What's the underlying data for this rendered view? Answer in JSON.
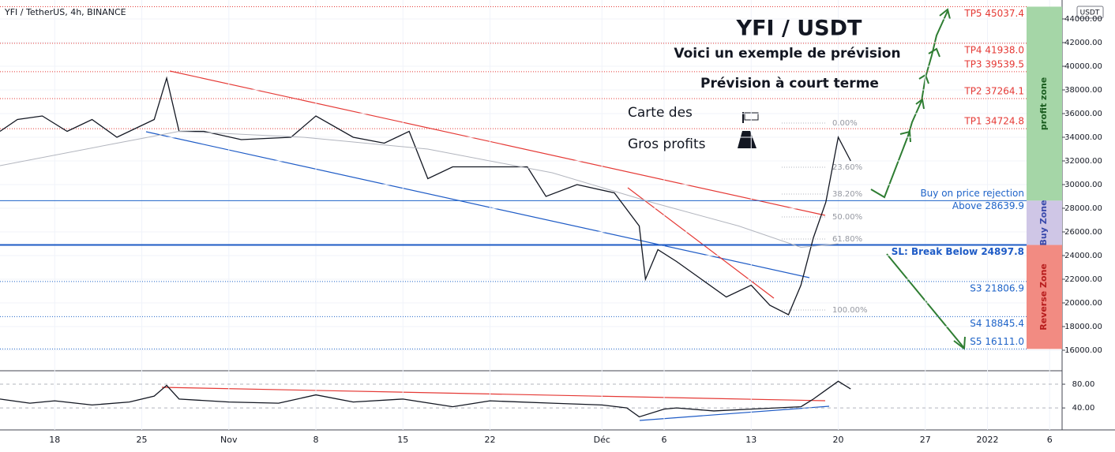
{
  "chart_data": [
    {
      "type": "line",
      "title": "YFI / TetherUS, 4h, BINANCE",
      "heading": "YFI / USDT",
      "annotations": [
        "Voici un exemple de prévision",
        "Prévision à court terme",
        "Carte des",
        "Gros profits"
      ],
      "unit": "USDT",
      "x": [
        -4.4,
        -3,
        -1,
        1,
        3,
        5,
        8,
        9,
        10,
        12,
        15,
        19,
        21,
        24,
        26.5,
        28.5,
        30,
        32,
        35,
        38,
        39.5,
        42,
        45,
        47,
        47.5,
        48.5,
        50,
        52,
        54,
        56,
        57.5,
        59,
        60,
        61,
        62,
        63,
        64
      ],
      "series": [
        {
          "color": "#131722",
          "values": [
            34500,
            35500,
            35800,
            34500,
            35500,
            34000,
            35500,
            39000,
            34500,
            34500,
            33800,
            34000,
            35800,
            34000,
            33500,
            34500,
            30500,
            31500,
            31500,
            31500,
            29000,
            30000,
            29300,
            26500,
            22000,
            24500,
            23500,
            22000,
            20500,
            21500,
            19800,
            19000,
            21500,
            25500,
            28500,
            34000,
            32000
          ]
        },
        {
          "color": "#b2b5be",
          "x": [
            -4.4,
            5,
            10,
            20,
            30,
            40,
            48,
            55,
            60,
            63
          ],
          "values": [
            31600,
            33500,
            34500,
            34000,
            33000,
            31000,
            28500,
            26500,
            24700,
            25000
          ]
        }
      ],
      "xlim": [
        -4.4,
        81
      ],
      "ylim": [
        14400,
        45600
      ],
      "yticks": [
        {
          "value": 16000,
          "label": "16000.00"
        },
        {
          "value": 18000,
          "label": "18000.00"
        },
        {
          "value": 20000,
          "label": "20000.00"
        },
        {
          "value": 22000,
          "label": "22000.00"
        },
        {
          "value": 24000,
          "label": "24000.00"
        },
        {
          "value": 26000,
          "label": "26000.00"
        },
        {
          "value": 28000,
          "label": "28000.00"
        },
        {
          "value": 30000,
          "label": "30000.00"
        },
        {
          "value": 32000,
          "label": "32000.00"
        },
        {
          "value": 34000,
          "label": "34000.00"
        },
        {
          "value": 36000,
          "label": "36000.00"
        },
        {
          "value": 38000,
          "label": "38000.00"
        },
        {
          "value": 40000,
          "label": "40000.00"
        },
        {
          "value": 42000,
          "label": "42000.00"
        },
        {
          "value": 44000,
          "label": "44000.00"
        }
      ],
      "levels": [
        {
          "label": "TP5 45037.4",
          "value": 45037.4,
          "color": "#e53935",
          "style": "dotted",
          "position": "below"
        },
        {
          "label": "TP4 41938.0",
          "value": 41938.0,
          "color": "#e53935",
          "style": "dotted",
          "position": "below"
        },
        {
          "label": "TP3 39539.5",
          "value": 39539.5,
          "color": "#e53935",
          "style": "dotted",
          "position": "above"
        },
        {
          "label": "TP2 37264.1",
          "value": 37264.1,
          "color": "#e53935",
          "style": "dotted",
          "position": "above"
        },
        {
          "label": "TP1 34724.8",
          "value": 34724.8,
          "color": "#e53935",
          "style": "dotted",
          "position": "above"
        },
        {
          "label": "Buy on price rejection",
          "sublabel": "Above 28639.9",
          "value": 28639.9,
          "color": "#1e63c8",
          "style": "solid",
          "position": "above"
        },
        {
          "label": "SL: Break Below 24897.8",
          "value": 24897.8,
          "color": "#1e5bc6",
          "style": "thick",
          "position": "below"
        },
        {
          "label": "S3 21806.9",
          "value": 21806.9,
          "color": "#1e63c8",
          "style": "dotted",
          "position": "below"
        },
        {
          "label": "S4 18845.4",
          "value": 18845.4,
          "color": "#1e63c8",
          "style": "dotted",
          "position": "below"
        },
        {
          "label": "S5 16111.0",
          "value": 16111.0,
          "color": "#1e63c8",
          "style": "dotted",
          "position": "above"
        }
      ],
      "fib": [
        {
          "value": 0,
          "label": "0.00%",
          "price": 35200
        },
        {
          "value": 23.6,
          "label": "23.60%",
          "price": 31470
        },
        {
          "value": 38.2,
          "label": "38.20%",
          "price": 29200
        },
        {
          "value": 50,
          "label": "50.00%",
          "price": 27270
        },
        {
          "value": 61.8,
          "label": "61.80%",
          "price": 25400
        },
        {
          "value": 100,
          "label": "100.00%",
          "price": 19400
        }
      ],
      "zones": [
        {
          "label": "profit zone",
          "top": 45037.4,
          "bottom": 28639.9,
          "color": "#a5d6a7",
          "text_color": "#1b5e20"
        },
        {
          "label": "Buy Zone",
          "top": 28639.9,
          "bottom": 24897.8,
          "color": "#cfc6e6",
          "text_color": "#3949ab"
        },
        {
          "label": "Reverse Zone",
          "top": 24897.8,
          "bottom": 16111.0,
          "color": "#f28b82",
          "text_color": "#b71c1c"
        }
      ]
    },
    {
      "type": "line",
      "x": [
        -4.4,
        -2,
        0,
        3,
        6,
        8,
        9,
        10,
        14,
        18,
        21,
        24,
        28,
        32,
        35,
        40,
        44,
        46,
        47,
        49,
        50,
        53,
        56,
        58,
        60,
        61,
        62,
        63,
        64
      ],
      "series": [
        {
          "color": "#131722",
          "values": [
            55,
            48,
            52,
            45,
            50,
            60,
            78,
            55,
            50,
            48,
            62,
            50,
            55,
            42,
            52,
            48,
            45,
            40,
            25,
            38,
            40,
            35,
            38,
            40,
            42,
            55,
            70,
            85,
            72
          ]
        }
      ],
      "xlim": [
        -4.4,
        81
      ],
      "ylim": [
        3,
        100
      ],
      "yticks": [
        {
          "value": 40,
          "label": "40.00"
        },
        {
          "value": 80,
          "label": "80.00"
        }
      ],
      "xticks": [
        {
          "value": 0,
          "label": "18"
        },
        {
          "value": 7,
          "label": "25"
        },
        {
          "value": 14,
          "label": "Nov"
        },
        {
          "value": 21,
          "label": "8"
        },
        {
          "value": 28,
          "label": "15"
        },
        {
          "value": 35,
          "label": "22"
        },
        {
          "value": 44,
          "label": "Déc"
        },
        {
          "value": 49,
          "label": "6"
        },
        {
          "value": 56,
          "label": "13"
        },
        {
          "value": 63,
          "label": "20"
        },
        {
          "value": 70,
          "label": "27"
        },
        {
          "value": 75,
          "label": "2022"
        },
        {
          "value": 80,
          "label": "6"
        }
      ]
    }
  ]
}
